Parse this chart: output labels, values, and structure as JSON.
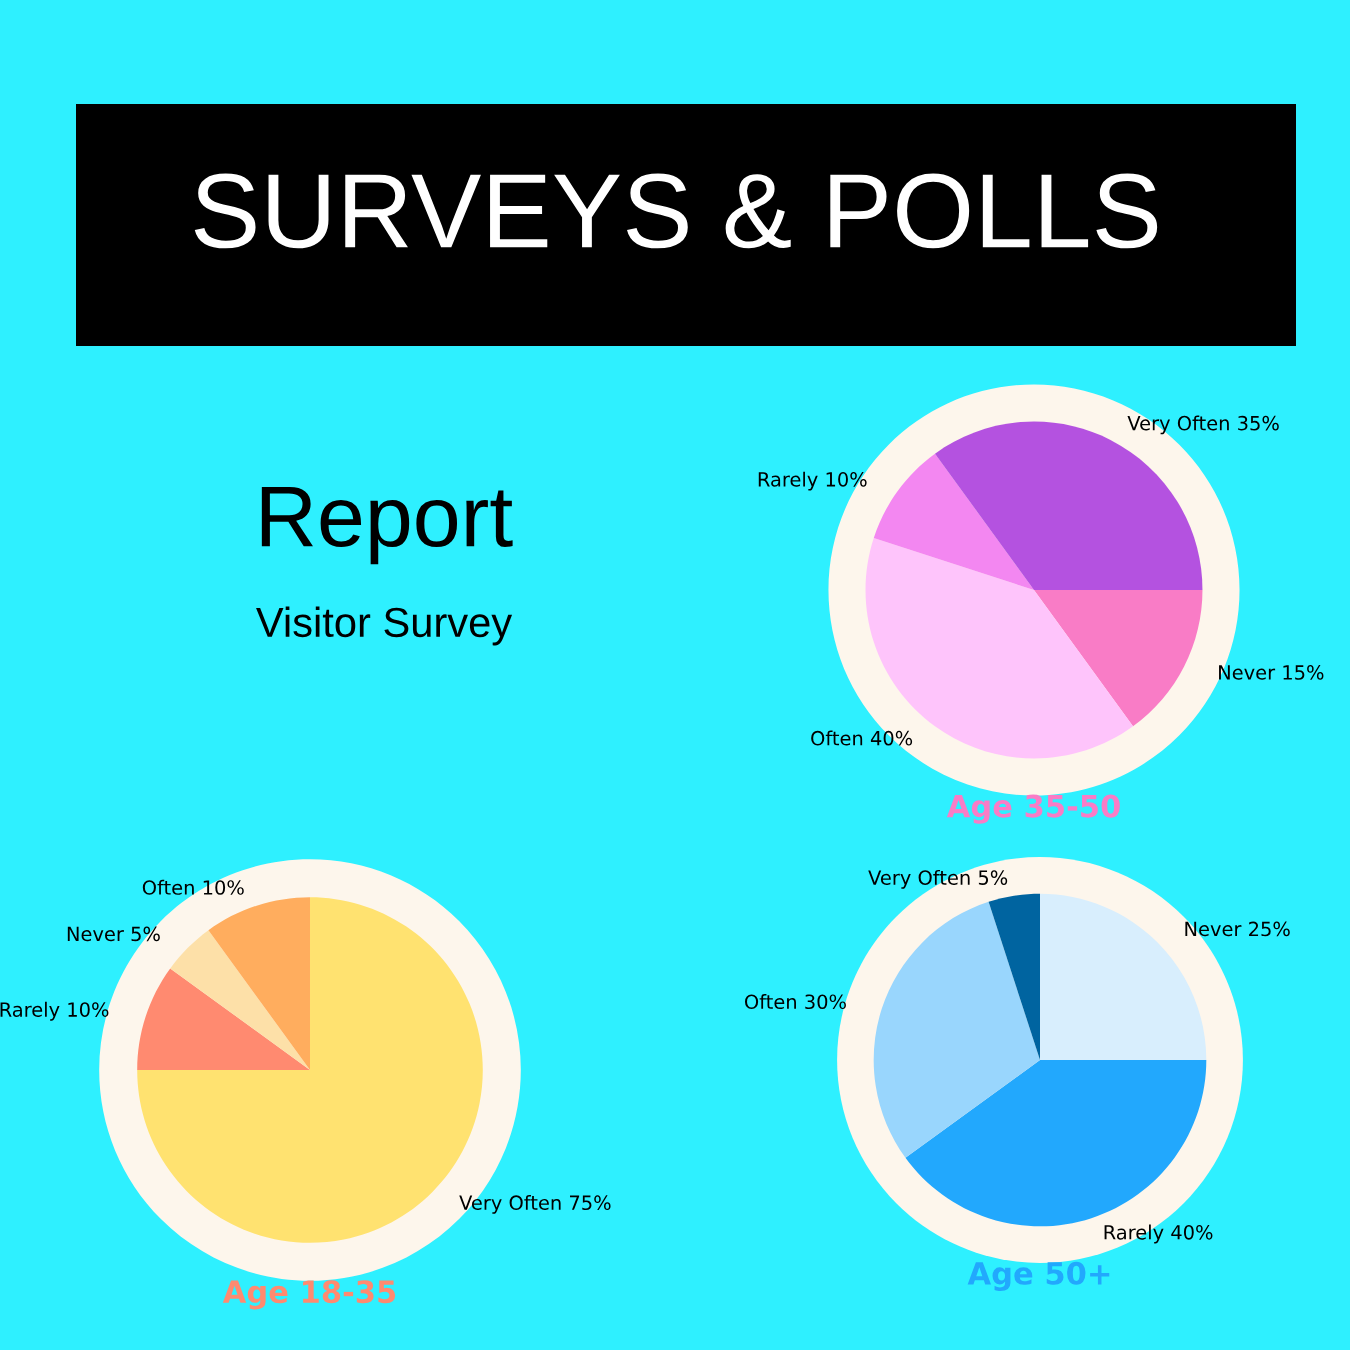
{
  "chart_data": [
    {
      "type": "other",
      "title": "SURVEYS & POLLS",
      "subtitle": "Report",
      "annotations": [
        "Visitor Survey"
      ]
    },
    {
      "type": "pie",
      "title": "Age 35-50",
      "categories": [
        "Never",
        "Often",
        "Rarely",
        "Very Often"
      ],
      "values": [
        15,
        40,
        10,
        35
      ],
      "value_labels": [
        "15%",
        "40%",
        "10%",
        "35%"
      ],
      "colors": [
        "#f97cc6",
        "#fec4fb",
        "#f387f1",
        "#b452e0"
      ]
    },
    {
      "type": "pie",
      "title": "Age 18-35",
      "categories": [
        "Very Often",
        "Rarely",
        "Never",
        "Often"
      ],
      "values": [
        75,
        10,
        5,
        10
      ],
      "value_labels": [
        "75%",
        "10%",
        "5%",
        "10%"
      ],
      "colors": [
        "#ffe270",
        "#ff8a70",
        "#fde0a8",
        "#ffad5e"
      ]
    },
    {
      "type": "pie",
      "title": "Age 50+",
      "categories": [
        "Never",
        "Rarely",
        "Often",
        "Very Often"
      ],
      "values": [
        25,
        40,
        30,
        5
      ],
      "value_labels": [
        "25%",
        "40%",
        "30%",
        "5%"
      ],
      "colors": [
        "#d8eefd",
        "#22a8fd",
        "#99d6fd",
        "#0064a0"
      ]
    }
  ]
}
